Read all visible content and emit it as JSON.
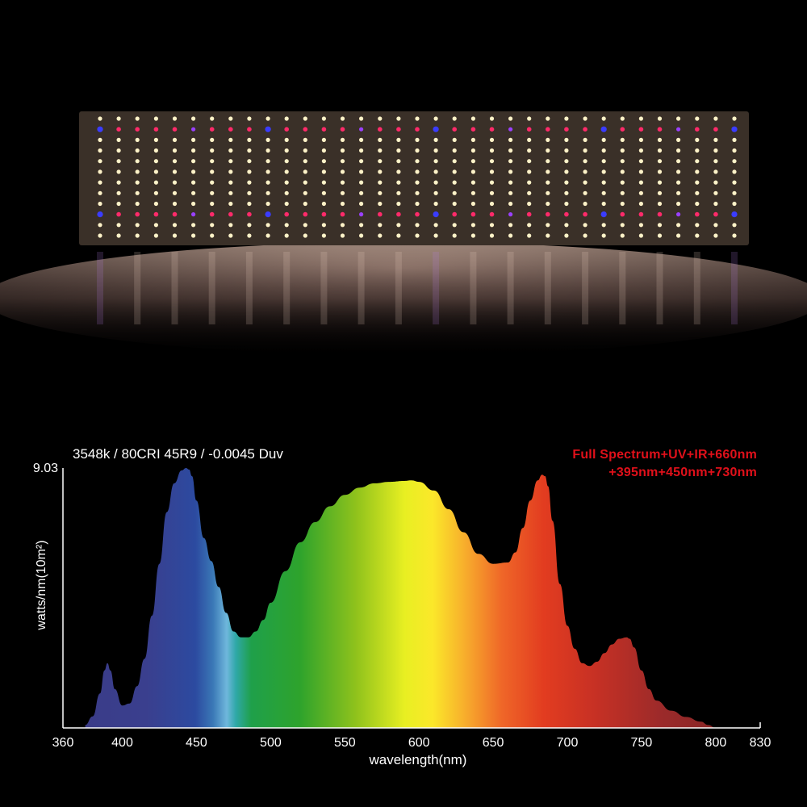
{
  "photo": {
    "subject": "LED grow light board",
    "led_colors": {
      "warm_white": "#fff3c8",
      "red": "#ff2a6a",
      "blue": "#3a3cff",
      "uv": "#9a40ff",
      "board": "#e9e3dc"
    }
  },
  "header": {
    "subtitle": "3548k / 80CRI 45R9 / -0.0045 Duv",
    "spectrum_line1": "Full  Spectrum+UV+IR+660nm",
    "spectrum_line2": "+395nm+450nm+730nm"
  },
  "chart_data": {
    "type": "area",
    "title": "",
    "xlabel": "wavelength(nm)",
    "ylabel": "watts/nm(10m²)",
    "xlim": [
      360,
      830
    ],
    "ylim": [
      0,
      9.03
    ],
    "x_ticks": [
      "360",
      "400",
      "450",
      "500",
      "550",
      "600",
      "650",
      "700",
      "750",
      "800",
      "830"
    ],
    "y_ticks": [
      "9.03"
    ],
    "grid": false,
    "series": [
      {
        "x": [
          375,
          380,
          385,
          388,
          390,
          392,
          395,
          400,
          405,
          410,
          415,
          420,
          425,
          430,
          435,
          440,
          443,
          445,
          447,
          450,
          455,
          460,
          465,
          470,
          475,
          480,
          485,
          490,
          495,
          500,
          510,
          520,
          530,
          540,
          550,
          560,
          570,
          580,
          590,
          595,
          600,
          610,
          620,
          630,
          640,
          650,
          660,
          665,
          670,
          675,
          680,
          683,
          685,
          687,
          690,
          695,
          700,
          705,
          710,
          715,
          720,
          725,
          730,
          735,
          740,
          742,
          745,
          750,
          755,
          760,
          770,
          780,
          790,
          795,
          800
        ],
        "y": [
          0.1,
          0.4,
          1.2,
          2.0,
          2.25,
          2.0,
          1.35,
          0.78,
          0.85,
          1.45,
          2.4,
          3.9,
          5.7,
          7.5,
          8.5,
          8.95,
          9.03,
          8.98,
          8.75,
          7.9,
          6.6,
          5.8,
          4.9,
          4.0,
          3.35,
          3.15,
          3.15,
          3.35,
          3.75,
          4.35,
          5.45,
          6.45,
          7.15,
          7.7,
          8.1,
          8.35,
          8.5,
          8.55,
          8.58,
          8.6,
          8.55,
          8.25,
          7.6,
          6.8,
          6.05,
          5.7,
          5.75,
          6.1,
          6.95,
          7.9,
          8.6,
          8.8,
          8.75,
          8.4,
          7.2,
          5.0,
          3.55,
          2.75,
          2.25,
          2.15,
          2.3,
          2.6,
          2.9,
          3.1,
          3.15,
          3.1,
          2.8,
          2.0,
          1.35,
          0.95,
          0.6,
          0.38,
          0.22,
          0.1,
          0.0
        ]
      }
    ]
  }
}
